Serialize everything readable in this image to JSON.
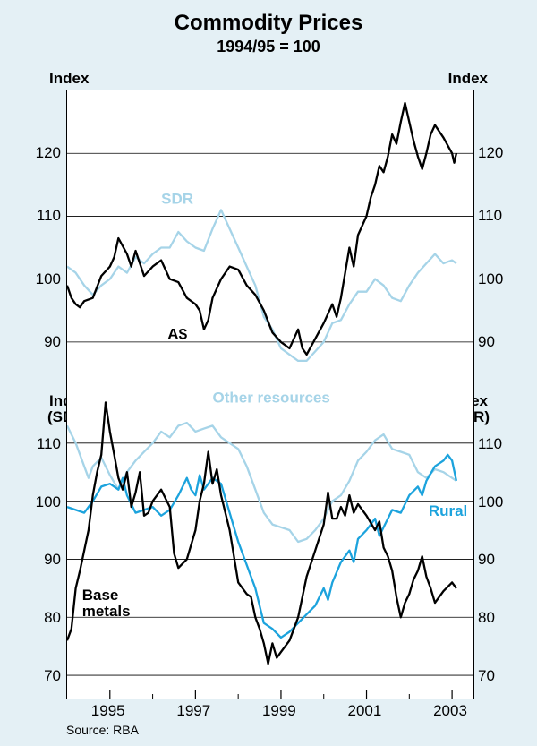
{
  "title": "Commodity Prices",
  "subtitle": "1994/95 = 100",
  "source": "Source: RBA",
  "x_range": [
    1994,
    2003.5
  ],
  "x_ticks_major": [
    1995,
    1997,
    1999,
    2001,
    2003
  ],
  "x_ticks_minor": [
    1996,
    1998,
    2000,
    2002
  ],
  "colors": {
    "black": "#000000",
    "light": "#a6d4e8",
    "blue": "#1ca3dd",
    "bg": "#e4f0f5"
  },
  "line_width": 2.3,
  "top": {
    "left_label": "Index",
    "right_label": "Index",
    "ylim": [
      83,
      130
    ],
    "yticks": [
      90,
      100,
      110,
      120
    ],
    "grid_x": [
      1994,
      1995,
      1996,
      1997,
      1998,
      1999,
      2000,
      2001,
      2002,
      2003
    ],
    "series": [
      {
        "name": "SDR",
        "color": "light",
        "label_pos": [
          1996.2,
          112
        ],
        "data": [
          [
            1994.0,
            102
          ],
          [
            1994.2,
            101
          ],
          [
            1994.4,
            99
          ],
          [
            1994.6,
            97.5
          ],
          [
            1994.8,
            99
          ],
          [
            1995.0,
            100
          ],
          [
            1995.2,
            102
          ],
          [
            1995.4,
            101
          ],
          [
            1995.6,
            103.5
          ],
          [
            1995.8,
            102.5
          ],
          [
            1996.0,
            104
          ],
          [
            1996.2,
            105
          ],
          [
            1996.4,
            105
          ],
          [
            1996.6,
            107.5
          ],
          [
            1996.8,
            106
          ],
          [
            1997.0,
            105
          ],
          [
            1997.2,
            104.5
          ],
          [
            1997.4,
            108
          ],
          [
            1997.6,
            111
          ],
          [
            1997.8,
            108
          ],
          [
            1998.0,
            105
          ],
          [
            1998.2,
            102
          ],
          [
            1998.4,
            99
          ],
          [
            1998.6,
            94
          ],
          [
            1998.8,
            92
          ],
          [
            1999.0,
            89
          ],
          [
            1999.2,
            88
          ],
          [
            1999.4,
            87
          ],
          [
            1999.6,
            87
          ],
          [
            1999.8,
            88.5
          ],
          [
            2000.0,
            90
          ],
          [
            2000.2,
            93
          ],
          [
            2000.4,
            93.5
          ],
          [
            2000.6,
            96
          ],
          [
            2000.8,
            98
          ],
          [
            2001.0,
            98
          ],
          [
            2001.2,
            100
          ],
          [
            2001.4,
            99
          ],
          [
            2001.6,
            97
          ],
          [
            2001.8,
            96.5
          ],
          [
            2002.0,
            99
          ],
          [
            2002.2,
            101
          ],
          [
            2002.4,
            102.5
          ],
          [
            2002.6,
            104
          ],
          [
            2002.8,
            102.5
          ],
          [
            2003.0,
            103
          ],
          [
            2003.1,
            102.5
          ]
        ]
      },
      {
        "name": "A$",
        "color": "black",
        "label_pos": [
          1996.35,
          90.5
        ],
        "data": [
          [
            1994.0,
            99
          ],
          [
            1994.1,
            97
          ],
          [
            1994.2,
            96
          ],
          [
            1994.3,
            95.5
          ],
          [
            1994.4,
            96.5
          ],
          [
            1994.6,
            97
          ],
          [
            1994.8,
            100.5
          ],
          [
            1995.0,
            102
          ],
          [
            1995.1,
            103.5
          ],
          [
            1995.2,
            106.5
          ],
          [
            1995.4,
            104
          ],
          [
            1995.5,
            102
          ],
          [
            1995.6,
            104.5
          ],
          [
            1995.8,
            100.5
          ],
          [
            1996.0,
            102
          ],
          [
            1996.2,
            103
          ],
          [
            1996.4,
            100
          ],
          [
            1996.6,
            99.5
          ],
          [
            1996.8,
            97
          ],
          [
            1997.0,
            96
          ],
          [
            1997.1,
            95
          ],
          [
            1997.2,
            92
          ],
          [
            1997.3,
            93.5
          ],
          [
            1997.4,
            97
          ],
          [
            1997.6,
            100
          ],
          [
            1997.8,
            102
          ],
          [
            1998.0,
            101.5
          ],
          [
            1998.2,
            99
          ],
          [
            1998.4,
            97.5
          ],
          [
            1998.6,
            95
          ],
          [
            1998.8,
            91.5
          ],
          [
            1999.0,
            90
          ],
          [
            1999.2,
            89
          ],
          [
            1999.4,
            92
          ],
          [
            1999.5,
            89
          ],
          [
            1999.6,
            88
          ],
          [
            1999.8,
            90.5
          ],
          [
            2000.0,
            93
          ],
          [
            2000.2,
            96
          ],
          [
            2000.3,
            94
          ],
          [
            2000.4,
            97
          ],
          [
            2000.6,
            105
          ],
          [
            2000.7,
            102
          ],
          [
            2000.8,
            107
          ],
          [
            2001.0,
            110
          ],
          [
            2001.1,
            113
          ],
          [
            2001.2,
            115
          ],
          [
            2001.3,
            118
          ],
          [
            2001.4,
            117
          ],
          [
            2001.5,
            119.5
          ],
          [
            2001.6,
            123
          ],
          [
            2001.7,
            121.5
          ],
          [
            2001.8,
            125
          ],
          [
            2001.9,
            128
          ],
          [
            2002.0,
            125
          ],
          [
            2002.1,
            122
          ],
          [
            2002.2,
            119.5
          ],
          [
            2002.3,
            117.5
          ],
          [
            2002.4,
            120
          ],
          [
            2002.5,
            123
          ],
          [
            2002.6,
            124.5
          ],
          [
            2002.8,
            122.5
          ],
          [
            2003.0,
            120
          ],
          [
            2003.05,
            118.5
          ],
          [
            2003.1,
            120
          ]
        ]
      }
    ]
  },
  "bottom": {
    "left_label1": "Index",
    "left_label2": "(SDR)",
    "right_label1": "Index",
    "right_label2": "(SDR)",
    "ylim": [
      66,
      120
    ],
    "yticks": [
      70,
      80,
      90,
      100,
      110
    ],
    "series": [
      {
        "name": "Other resources",
        "color": "light",
        "label_pos": [
          1997.4,
          117
        ],
        "data": [
          [
            1994.0,
            113
          ],
          [
            1994.2,
            110
          ],
          [
            1994.4,
            106
          ],
          [
            1994.5,
            104
          ],
          [
            1994.6,
            106
          ],
          [
            1994.8,
            107.5
          ],
          [
            1995.0,
            104.5
          ],
          [
            1995.2,
            102
          ],
          [
            1995.4,
            105
          ],
          [
            1995.6,
            107
          ],
          [
            1995.8,
            108.5
          ],
          [
            1996.0,
            110
          ],
          [
            1996.2,
            112
          ],
          [
            1996.4,
            111
          ],
          [
            1996.6,
            113
          ],
          [
            1996.8,
            113.5
          ],
          [
            1997.0,
            112
          ],
          [
            1997.2,
            112.5
          ],
          [
            1997.4,
            113
          ],
          [
            1997.6,
            111
          ],
          [
            1997.8,
            110
          ],
          [
            1998.0,
            109
          ],
          [
            1998.2,
            106
          ],
          [
            1998.4,
            102
          ],
          [
            1998.6,
            98
          ],
          [
            1998.8,
            96
          ],
          [
            1999.0,
            95.5
          ],
          [
            1999.2,
            95
          ],
          [
            1999.4,
            93
          ],
          [
            1999.6,
            93.5
          ],
          [
            1999.8,
            95
          ],
          [
            2000.0,
            97
          ],
          [
            2000.2,
            100
          ],
          [
            2000.4,
            101
          ],
          [
            2000.6,
            103.5
          ],
          [
            2000.8,
            107
          ],
          [
            2001.0,
            108.5
          ],
          [
            2001.2,
            110.5
          ],
          [
            2001.4,
            111.5
          ],
          [
            2001.6,
            109
          ],
          [
            2001.8,
            108.5
          ],
          [
            2002.0,
            108
          ],
          [
            2002.2,
            105
          ],
          [
            2002.4,
            104
          ],
          [
            2002.6,
            105.5
          ],
          [
            2002.8,
            105
          ],
          [
            2003.0,
            104
          ],
          [
            2003.1,
            103.5
          ]
        ]
      },
      {
        "name": "Rural",
        "color": "blue",
        "label_pos": [
          2002.45,
          97.5
        ],
        "data": [
          [
            1994.0,
            99
          ],
          [
            1994.2,
            98.5
          ],
          [
            1994.4,
            98
          ],
          [
            1994.6,
            100
          ],
          [
            1994.8,
            102.5
          ],
          [
            1995.0,
            103
          ],
          [
            1995.2,
            102
          ],
          [
            1995.3,
            104
          ],
          [
            1995.4,
            101
          ],
          [
            1995.6,
            98
          ],
          [
            1995.8,
            98.5
          ],
          [
            1996.0,
            99
          ],
          [
            1996.2,
            97.5
          ],
          [
            1996.4,
            98.5
          ],
          [
            1996.6,
            101
          ],
          [
            1996.8,
            104
          ],
          [
            1996.9,
            102
          ],
          [
            1997.0,
            101
          ],
          [
            1997.1,
            104.5
          ],
          [
            1997.2,
            102
          ],
          [
            1997.4,
            104
          ],
          [
            1997.6,
            103
          ],
          [
            1997.8,
            98
          ],
          [
            1998.0,
            93
          ],
          [
            1998.2,
            89
          ],
          [
            1998.4,
            85
          ],
          [
            1998.6,
            79
          ],
          [
            1998.8,
            78
          ],
          [
            1999.0,
            76.5
          ],
          [
            1999.2,
            77.5
          ],
          [
            1999.4,
            79
          ],
          [
            1999.6,
            80.5
          ],
          [
            1999.8,
            82
          ],
          [
            2000.0,
            85
          ],
          [
            2000.1,
            83
          ],
          [
            2000.2,
            86
          ],
          [
            2000.4,
            89.5
          ],
          [
            2000.6,
            91.5
          ],
          [
            2000.7,
            89.5
          ],
          [
            2000.8,
            93.5
          ],
          [
            2001.0,
            95
          ],
          [
            2001.2,
            97
          ],
          [
            2001.3,
            94
          ],
          [
            2001.4,
            95.5
          ],
          [
            2001.6,
            98.5
          ],
          [
            2001.8,
            98
          ],
          [
            2002.0,
            101
          ],
          [
            2002.2,
            102.5
          ],
          [
            2002.3,
            101
          ],
          [
            2002.4,
            103.5
          ],
          [
            2002.6,
            106
          ],
          [
            2002.8,
            107
          ],
          [
            2002.9,
            108
          ],
          [
            2003.0,
            107
          ],
          [
            2003.1,
            103.5
          ]
        ]
      },
      {
        "name": "Base\\nmetals",
        "color": "black",
        "label_pos": [
          1994.35,
          83
        ],
        "data": [
          [
            1994.0,
            76
          ],
          [
            1994.1,
            78
          ],
          [
            1994.2,
            85
          ],
          [
            1994.3,
            88
          ],
          [
            1994.4,
            91.5
          ],
          [
            1994.5,
            95
          ],
          [
            1994.6,
            101
          ],
          [
            1994.7,
            105
          ],
          [
            1994.8,
            108
          ],
          [
            1994.9,
            117
          ],
          [
            1995.0,
            112
          ],
          [
            1995.1,
            108
          ],
          [
            1995.2,
            104
          ],
          [
            1995.3,
            102
          ],
          [
            1995.4,
            105
          ],
          [
            1995.5,
            99
          ],
          [
            1995.6,
            101.5
          ],
          [
            1995.7,
            105
          ],
          [
            1995.8,
            97.5
          ],
          [
            1995.9,
            98
          ],
          [
            1996.0,
            100
          ],
          [
            1996.2,
            102
          ],
          [
            1996.4,
            99
          ],
          [
            1996.5,
            91
          ],
          [
            1996.6,
            88.5
          ],
          [
            1996.8,
            90
          ],
          [
            1997.0,
            95
          ],
          [
            1997.1,
            100
          ],
          [
            1997.2,
            103
          ],
          [
            1997.3,
            108.5
          ],
          [
            1997.4,
            103
          ],
          [
            1997.5,
            105.5
          ],
          [
            1997.6,
            101
          ],
          [
            1997.8,
            95
          ],
          [
            1998.0,
            86
          ],
          [
            1998.2,
            84
          ],
          [
            1998.3,
            83.5
          ],
          [
            1998.4,
            80
          ],
          [
            1998.5,
            78
          ],
          [
            1998.6,
            75.5
          ],
          [
            1998.7,
            72
          ],
          [
            1998.8,
            75.5
          ],
          [
            1998.9,
            73
          ],
          [
            1999.0,
            74
          ],
          [
            1999.2,
            76
          ],
          [
            1999.4,
            80
          ],
          [
            1999.6,
            87
          ],
          [
            1999.8,
            91.5
          ],
          [
            2000.0,
            96
          ],
          [
            2000.1,
            101.5
          ],
          [
            2000.2,
            97
          ],
          [
            2000.3,
            97
          ],
          [
            2000.4,
            99
          ],
          [
            2000.5,
            97.5
          ],
          [
            2000.6,
            101
          ],
          [
            2000.7,
            98
          ],
          [
            2000.8,
            99.5
          ],
          [
            2001.0,
            97.5
          ],
          [
            2001.2,
            95
          ],
          [
            2001.3,
            96.5
          ],
          [
            2001.4,
            92
          ],
          [
            2001.5,
            90.5
          ],
          [
            2001.6,
            88
          ],
          [
            2001.7,
            83.5
          ],
          [
            2001.8,
            80
          ],
          [
            2001.9,
            82.5
          ],
          [
            2002.0,
            84
          ],
          [
            2002.1,
            86.5
          ],
          [
            2002.2,
            88
          ],
          [
            2002.3,
            90.5
          ],
          [
            2002.4,
            87
          ],
          [
            2002.5,
            85
          ],
          [
            2002.6,
            82.5
          ],
          [
            2002.8,
            84.5
          ],
          [
            2003.0,
            86
          ],
          [
            2003.1,
            85
          ]
        ]
      }
    ]
  }
}
